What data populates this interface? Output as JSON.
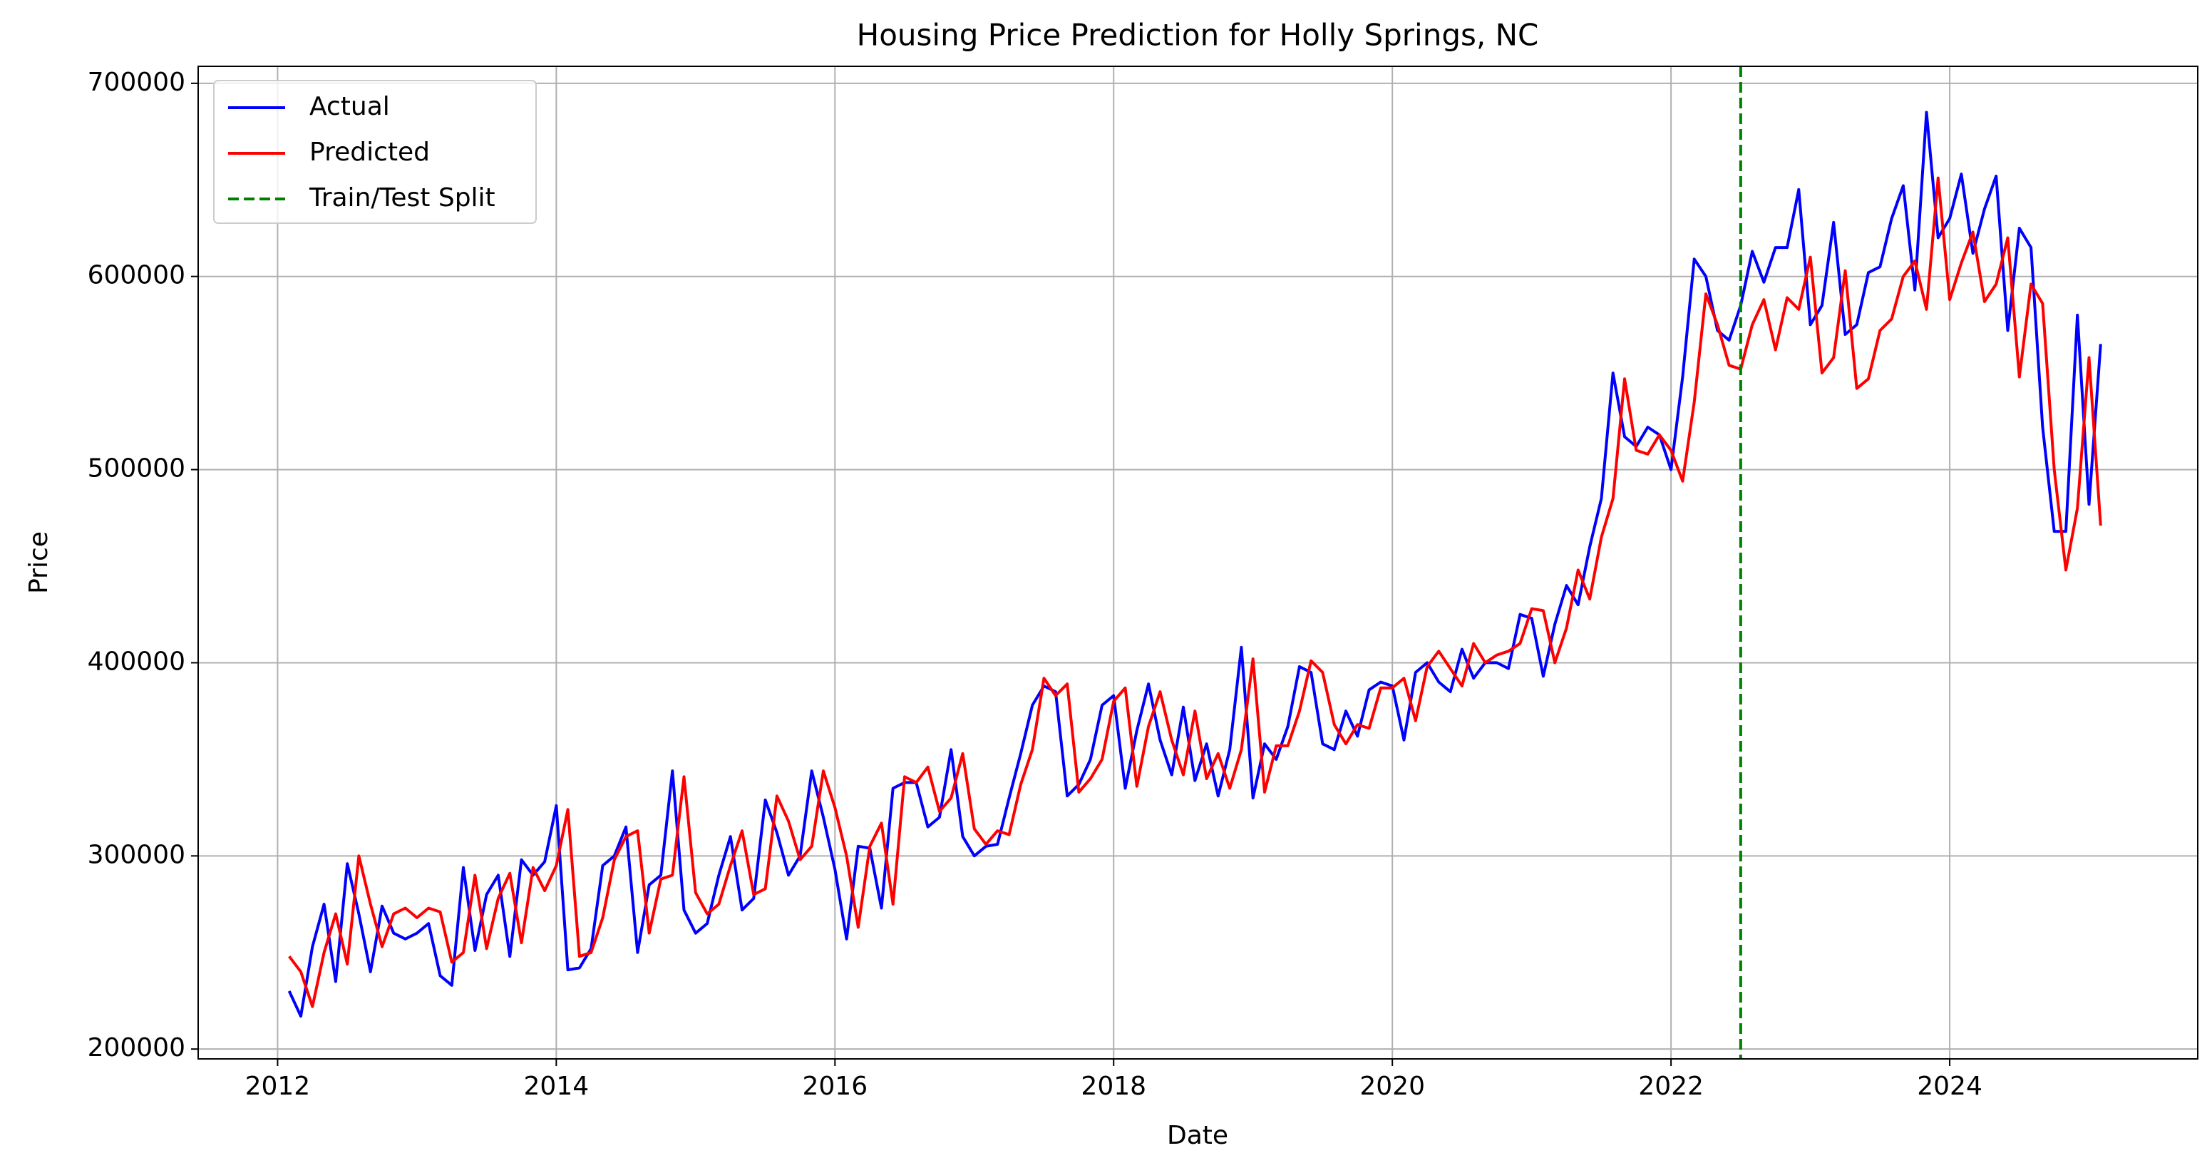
{
  "chart_data": {
    "type": "line",
    "title": "Housing Price Prediction for Holly Springs, NC",
    "x_label": "Date",
    "y_label": "Price",
    "x": [
      "2012-02",
      "2012-03",
      "2012-04",
      "2012-05",
      "2012-06",
      "2012-07",
      "2012-08",
      "2012-09",
      "2012-10",
      "2012-11",
      "2012-12",
      "2013-01",
      "2013-02",
      "2013-03",
      "2013-04",
      "2013-05",
      "2013-06",
      "2013-07",
      "2013-08",
      "2013-09",
      "2013-10",
      "2013-11",
      "2013-12",
      "2014-01",
      "2014-02",
      "2014-03",
      "2014-04",
      "2014-05",
      "2014-06",
      "2014-07",
      "2014-08",
      "2014-09",
      "2014-10",
      "2014-11",
      "2014-12",
      "2015-01",
      "2015-02",
      "2015-03",
      "2015-04",
      "2015-05",
      "2015-06",
      "2015-07",
      "2015-08",
      "2015-09",
      "2015-10",
      "2015-11",
      "2015-12",
      "2016-01",
      "2016-02",
      "2016-03",
      "2016-04",
      "2016-05",
      "2016-06",
      "2016-07",
      "2016-08",
      "2016-09",
      "2016-10",
      "2016-11",
      "2016-12",
      "2017-01",
      "2017-02",
      "2017-03",
      "2017-04",
      "2017-05",
      "2017-06",
      "2017-07",
      "2017-08",
      "2017-09",
      "2017-10",
      "2017-11",
      "2017-12",
      "2018-01",
      "2018-02",
      "2018-03",
      "2018-04",
      "2018-05",
      "2018-06",
      "2018-07",
      "2018-08",
      "2018-09",
      "2018-10",
      "2018-11",
      "2018-12",
      "2019-01",
      "2019-02",
      "2019-03",
      "2019-04",
      "2019-05",
      "2019-06",
      "2019-07",
      "2019-08",
      "2019-09",
      "2019-10",
      "2019-11",
      "2019-12",
      "2020-01",
      "2020-02",
      "2020-03",
      "2020-04",
      "2020-05",
      "2020-06",
      "2020-07",
      "2020-08",
      "2020-09",
      "2020-10",
      "2020-11",
      "2020-12",
      "2021-01",
      "2021-02",
      "2021-03",
      "2021-04",
      "2021-05",
      "2021-06",
      "2021-07",
      "2021-08",
      "2021-09",
      "2021-10",
      "2021-11",
      "2021-12",
      "2022-01",
      "2022-02",
      "2022-03",
      "2022-04",
      "2022-05",
      "2022-06",
      "2022-07",
      "2022-08",
      "2022-09",
      "2022-10",
      "2022-11",
      "2022-12",
      "2023-01",
      "2023-02",
      "2023-03",
      "2023-04",
      "2023-05",
      "2023-06",
      "2023-07",
      "2023-08",
      "2023-09",
      "2023-10",
      "2023-11",
      "2023-12",
      "2024-01",
      "2024-02",
      "2024-03",
      "2024-04",
      "2024-05",
      "2024-06",
      "2024-07",
      "2024-08",
      "2024-09",
      "2024-10",
      "2024-11",
      "2024-12",
      "2025-01",
      "2025-02"
    ],
    "series": [
      {
        "name": "Actual",
        "color": "#0000ff",
        "values": [
          230000,
          217000,
          253000,
          275000,
          235000,
          296000,
          270000,
          240000,
          274000,
          260000,
          257000,
          260000,
          265000,
          238000,
          233000,
          294000,
          251000,
          280000,
          290000,
          248000,
          298000,
          290000,
          297000,
          326000,
          241000,
          242000,
          252000,
          295000,
          300000,
          315000,
          250000,
          285000,
          290000,
          344000,
          272000,
          260000,
          265000,
          290000,
          310000,
          272000,
          278000,
          329000,
          312000,
          290000,
          300000,
          344000,
          320000,
          293000,
          257000,
          305000,
          304000,
          273000,
          335000,
          338000,
          338000,
          315000,
          320000,
          355000,
          310000,
          300000,
          305000,
          306000,
          330000,
          353000,
          378000,
          388000,
          385000,
          331000,
          337000,
          350000,
          378000,
          383000,
          335000,
          365000,
          389000,
          360000,
          342000,
          377000,
          339000,
          358000,
          331000,
          355000,
          408000,
          330000,
          358000,
          350000,
          367000,
          398000,
          395000,
          358000,
          355000,
          375000,
          362000,
          386000,
          390000,
          388000,
          360000,
          395000,
          400000,
          390000,
          385000,
          407000,
          392000,
          400000,
          400000,
          397000,
          425000,
          423000,
          393000,
          420000,
          440000,
          430000,
          460000,
          485000,
          550000,
          517000,
          512000,
          522000,
          518000,
          500000,
          548000,
          609000,
          600000,
          572000,
          567000,
          585000,
          613000,
          597000,
          615000,
          615000,
          645000,
          575000,
          585000,
          628000,
          570000,
          575000,
          602000,
          605000,
          630000,
          647000,
          593000,
          685000,
          620000,
          630000,
          653000,
          612000,
          635000,
          652000,
          572000,
          625000,
          615000,
          522000,
          468000,
          468000,
          580000,
          482000,
          565000
        ]
      },
      {
        "name": "Predicted",
        "color": "#ff0000",
        "values": [
          248000,
          240000,
          222000,
          250000,
          270000,
          244000,
          300000,
          275000,
          253000,
          270000,
          273000,
          268000,
          273000,
          271000,
          245000,
          250000,
          290000,
          252000,
          278000,
          291000,
          255000,
          294000,
          282000,
          295000,
          324000,
          248000,
          250000,
          268000,
          298000,
          310000,
          313000,
          260000,
          288000,
          290000,
          341000,
          281000,
          270000,
          275000,
          295000,
          313000,
          280000,
          283000,
          331000,
          318000,
          298000,
          305000,
          344000,
          325000,
          300000,
          263000,
          305000,
          317000,
          275000,
          341000,
          338000,
          346000,
          323000,
          330000,
          353000,
          314000,
          306000,
          313000,
          311000,
          337000,
          355000,
          392000,
          383000,
          389000,
          333000,
          340000,
          350000,
          380000,
          387000,
          336000,
          367000,
          385000,
          360000,
          342000,
          375000,
          340000,
          353000,
          335000,
          355000,
          402000,
          333000,
          357000,
          357000,
          375000,
          401000,
          395000,
          368000,
          358000,
          368000,
          366000,
          387000,
          387000,
          392000,
          370000,
          398000,
          406000,
          397000,
          388000,
          410000,
          400000,
          404000,
          406000,
          410000,
          428000,
          427000,
          400000,
          418000,
          448000,
          433000,
          465000,
          485000,
          547000,
          510000,
          508000,
          518000,
          510000,
          494000,
          535000,
          591000,
          575000,
          554000,
          552000,
          575000,
          588000,
          562000,
          589000,
          583000,
          610000,
          550000,
          558000,
          603000,
          542000,
          547000,
          572000,
          578000,
          600000,
          608000,
          583000,
          651000,
          588000,
          607000,
          623000,
          587000,
          596000,
          620000,
          548000,
          596000,
          586000,
          500000,
          448000,
          480000,
          558000,
          471000
        ]
      }
    ],
    "split": "2022-07",
    "split_label": "Train/Test Split",
    "split_color": "#008000",
    "xlim": [
      2011.43,
      2025.78
    ],
    "xticks": [
      2012,
      2014,
      2016,
      2018,
      2020,
      2022,
      2024
    ],
    "ylim": [
      194900,
      708800
    ],
    "yticks": [
      200000,
      300000,
      400000,
      500000,
      600000,
      700000
    ],
    "grid": true,
    "legend": "upper left"
  }
}
